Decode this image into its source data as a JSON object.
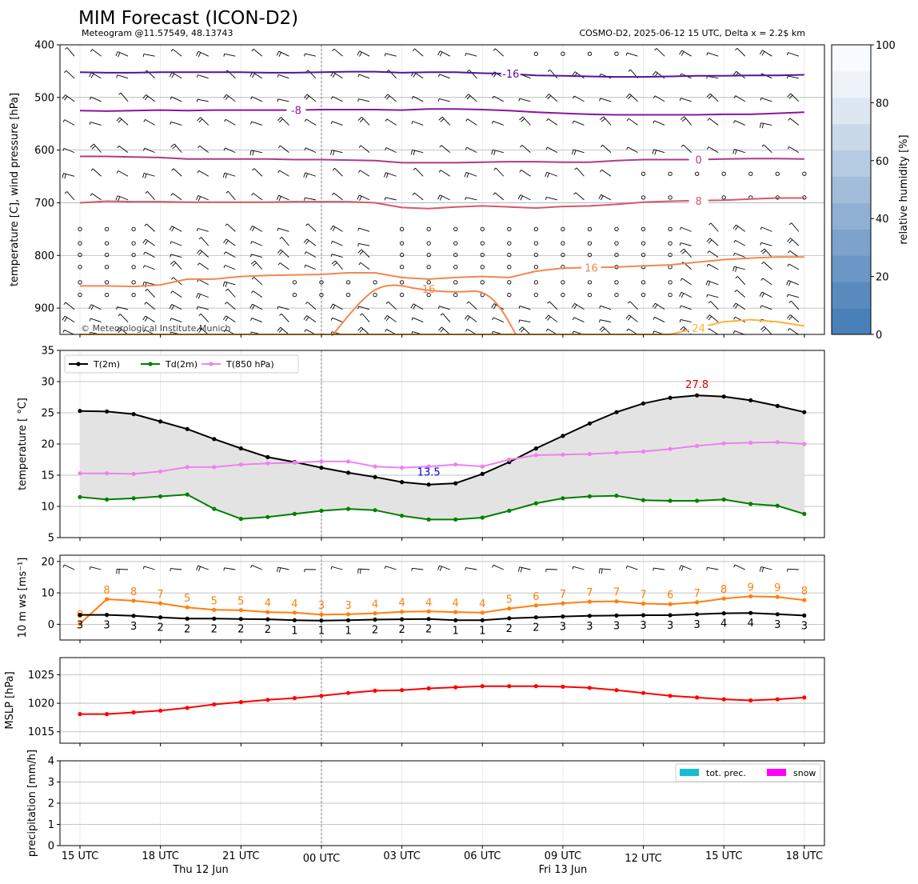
{
  "header": {
    "title": "MIM Forecast (ICON-D2)",
    "subtitle_left": "Meteogram @11.57549, 48.13743",
    "subtitle_right": "COSMO-D2, 2025-06-12 15 UTC, Delta x = 2.2$ km",
    "copyright": "© Meteorological Institute Munich"
  },
  "time_axis": {
    "tick_labels": [
      "15 UTC",
      "18 UTC",
      "21 UTC",
      "00 UTC",
      "03 UTC",
      "06 UTC",
      "09 UTC",
      "12 UTC",
      "15 UTC",
      "18 UTC"
    ],
    "day_labels": [
      "Thu 12 Jun",
      "Fri 13 Jun"
    ]
  },
  "chart_data": [
    {
      "type": "contour",
      "panel": "pressure",
      "ylabel": "temperature [C], wind pressure [hPa]",
      "yticks": [
        400,
        500,
        600,
        700,
        800,
        900
      ],
      "ylim": [
        950,
        400
      ],
      "colorbar": {
        "label": "relative humidity [%]",
        "ticks": [
          0,
          20,
          40,
          60,
          80,
          100
        ],
        "colors": [
          "#4a80b8",
          "#5a8bbf",
          "#6b97c6",
          "#7da3cc",
          "#8fb0d3",
          "#a2bdda",
          "#b5cbe2",
          "#c9d9ea",
          "#dde7f2",
          "#eef3f9",
          "#f7fbff"
        ]
      },
      "isotherms": [
        {
          "value": -16,
          "label": "-16",
          "color": "#5b0f9e",
          "y": [
            452,
            453,
            453,
            452,
            452,
            452,
            452,
            453,
            453,
            452,
            451,
            451,
            453,
            452,
            452,
            454,
            455,
            458,
            459,
            460,
            461,
            461,
            460,
            459,
            459,
            458,
            458,
            457
          ]
        },
        {
          "value": -8,
          "label": "-8",
          "color": "#8c14a0",
          "y": [
            525,
            526,
            525,
            524,
            525,
            524,
            524,
            524,
            524,
            523,
            523,
            523,
            524,
            522,
            522,
            523,
            525,
            528,
            530,
            532,
            533,
            533,
            533,
            533,
            532,
            532,
            530,
            528
          ]
        },
        {
          "value": 0,
          "label": "0",
          "color": "#b03a86",
          "y": [
            612,
            612,
            613,
            614,
            617,
            617,
            617,
            617,
            618,
            618,
            619,
            620,
            624,
            624,
            624,
            623,
            622,
            622,
            623,
            623,
            620,
            618,
            618,
            618,
            617,
            616,
            616,
            617
          ]
        },
        {
          "value": 8,
          "label": "8",
          "color": "#d5596a",
          "y": [
            700,
            697,
            698,
            698,
            699,
            699,
            699,
            699,
            698,
            698,
            698,
            700,
            709,
            711,
            708,
            706,
            708,
            710,
            707,
            706,
            703,
            699,
            697,
            696,
            695,
            693,
            691,
            691
          ]
        },
        {
          "value": 16,
          "label": "16",
          "color": "#f2884f",
          "y": [
            858,
            858,
            859,
            856,
            845,
            845,
            840,
            838,
            837,
            836,
            833,
            833,
            842,
            845,
            842,
            840,
            842,
            830,
            824,
            823,
            822,
            820,
            818,
            813,
            808,
            805,
            803,
            803
          ]
        },
        {
          "value": 24,
          "label": "24",
          "color": "#fbb33b",
          "y": [
            950,
            950,
            950,
            950,
            950,
            950,
            950,
            950,
            950,
            950,
            950,
            950,
            950,
            950,
            950,
            950,
            950,
            950,
            950,
            950,
            950,
            950,
            950,
            938,
            926,
            922,
            926,
            934
          ]
        }
      ]
    },
    {
      "type": "line",
      "panel": "temperature",
      "ylabel": "temperature [$^\\circ$C]",
      "ylim": [
        5,
        35
      ],
      "yticks": [
        5,
        10,
        15,
        20,
        25,
        30,
        35
      ],
      "series": [
        {
          "name": "T(2m)",
          "color": "#000000",
          "values": [
            25.3,
            25.2,
            24.8,
            23.6,
            22.4,
            20.8,
            19.3,
            17.9,
            17.1,
            16.2,
            15.4,
            14.7,
            13.9,
            13.5,
            13.7,
            15.2,
            17.1,
            19.3,
            21.3,
            23.3,
            25.1,
            26.5,
            27.4,
            27.8,
            27.6,
            27.0,
            26.1,
            25.1
          ]
        },
        {
          "name": "Td(2m)",
          "color": "#008000",
          "values": [
            11.5,
            11.1,
            11.3,
            11.6,
            11.9,
            9.6,
            8.0,
            8.3,
            8.8,
            9.3,
            9.6,
            9.4,
            8.5,
            7.9,
            7.9,
            8.2,
            9.3,
            10.5,
            11.3,
            11.6,
            11.7,
            11.0,
            10.9,
            10.9,
            11.1,
            10.4,
            10.1,
            8.8
          ]
        },
        {
          "name": "T(850 hPa)",
          "color": "#ee82ee",
          "values": [
            15.3,
            15.3,
            15.2,
            15.6,
            16.3,
            16.3,
            16.7,
            16.9,
            17.0,
            17.2,
            17.2,
            16.4,
            16.2,
            16.4,
            16.7,
            16.4,
            17.5,
            18.2,
            18.3,
            18.4,
            18.6,
            18.8,
            19.2,
            19.7,
            20.1,
            20.2,
            20.3,
            20.0
          ]
        }
      ],
      "annotations": [
        {
          "text": "27.8",
          "color": "#e00000",
          "x_index": 23,
          "y": 29.6
        },
        {
          "text": "13.5",
          "color": "#0000dd",
          "x_index": 13,
          "y": 15.6
        }
      ]
    },
    {
      "type": "line",
      "panel": "wind",
      "ylabel": "10 m ws [ms$^{-1}$]",
      "ylim": [
        -5,
        22
      ],
      "yticks": [
        0,
        10,
        20
      ],
      "series": [
        {
          "name": "gust",
          "color": "#ff7f0e",
          "values": [
            0.2,
            8.0,
            7.5,
            6.7,
            5.4,
            4.6,
            4.5,
            3.9,
            3.7,
            3.1,
            3.2,
            3.5,
            4.0,
            4.1,
            3.9,
            3.7,
            5.0,
            6.0,
            6.7,
            7.2,
            7.3,
            6.6,
            6.4,
            7.0,
            8.2,
            8.9,
            8.7,
            7.7
          ],
          "labels": [
            "0",
            "8",
            "8",
            "7",
            "5",
            "5",
            "5",
            "4",
            "4",
            "3",
            "3",
            "4",
            "4",
            "4",
            "4",
            "4",
            "5",
            "6",
            "7",
            "7",
            "7",
            "7",
            "6",
            "7",
            "8",
            "9",
            "9",
            "8"
          ]
        },
        {
          "name": "ws",
          "color": "#000000",
          "values": [
            3.0,
            3.0,
            2.7,
            2.2,
            1.8,
            1.8,
            1.7,
            1.6,
            1.3,
            1.2,
            1.3,
            1.5,
            1.6,
            1.7,
            1.3,
            1.3,
            1.9,
            2.2,
            2.5,
            2.7,
            2.8,
            2.9,
            2.9,
            3.2,
            3.5,
            3.6,
            3.2,
            2.8
          ],
          "labels": [
            "3",
            "3",
            "3",
            "2",
            "2",
            "2",
            "2",
            "2",
            "1",
            "1",
            "1",
            "2",
            "2",
            "2",
            "1",
            "1",
            "2",
            "2",
            "3",
            "3",
            "3",
            "3",
            "3",
            "3",
            "4",
            "4",
            "3",
            "3"
          ]
        }
      ]
    },
    {
      "type": "line",
      "panel": "mslp",
      "ylabel": "MSLP [hPa]",
      "ylim": [
        1013,
        1028
      ],
      "yticks": [
        1015,
        1020,
        1025
      ],
      "series": [
        {
          "name": "MSLP",
          "color": "#ff0000",
          "values": [
            1018.1,
            1018.1,
            1018.4,
            1018.7,
            1019.2,
            1019.8,
            1020.2,
            1020.6,
            1020.9,
            1021.3,
            1021.8,
            1022.2,
            1022.3,
            1022.6,
            1022.8,
            1023.0,
            1023.0,
            1023.0,
            1022.9,
            1022.7,
            1022.3,
            1021.8,
            1021.3,
            1021.0,
            1020.7,
            1020.5,
            1020.7,
            1021.0
          ]
        }
      ]
    },
    {
      "type": "bar",
      "panel": "precip",
      "ylabel": "precipitation [mm/h]",
      "ylim": [
        0,
        4
      ],
      "yticks": [
        0,
        1,
        2,
        3,
        4
      ],
      "legend": [
        {
          "name": "tot. prec.",
          "color": "#17becf"
        },
        {
          "name": "snow",
          "color": "#ff00ff"
        }
      ],
      "series": [
        {
          "name": "tot. prec.",
          "values": [
            0,
            0,
            0,
            0,
            0,
            0,
            0,
            0,
            0,
            0,
            0,
            0,
            0,
            0,
            0,
            0,
            0,
            0,
            0,
            0,
            0,
            0,
            0,
            0,
            0,
            0,
            0,
            0
          ]
        },
        {
          "name": "snow",
          "values": [
            0,
            0,
            0,
            0,
            0,
            0,
            0,
            0,
            0,
            0,
            0,
            0,
            0,
            0,
            0,
            0,
            0,
            0,
            0,
            0,
            0,
            0,
            0,
            0,
            0,
            0,
            0,
            0
          ]
        }
      ]
    }
  ]
}
